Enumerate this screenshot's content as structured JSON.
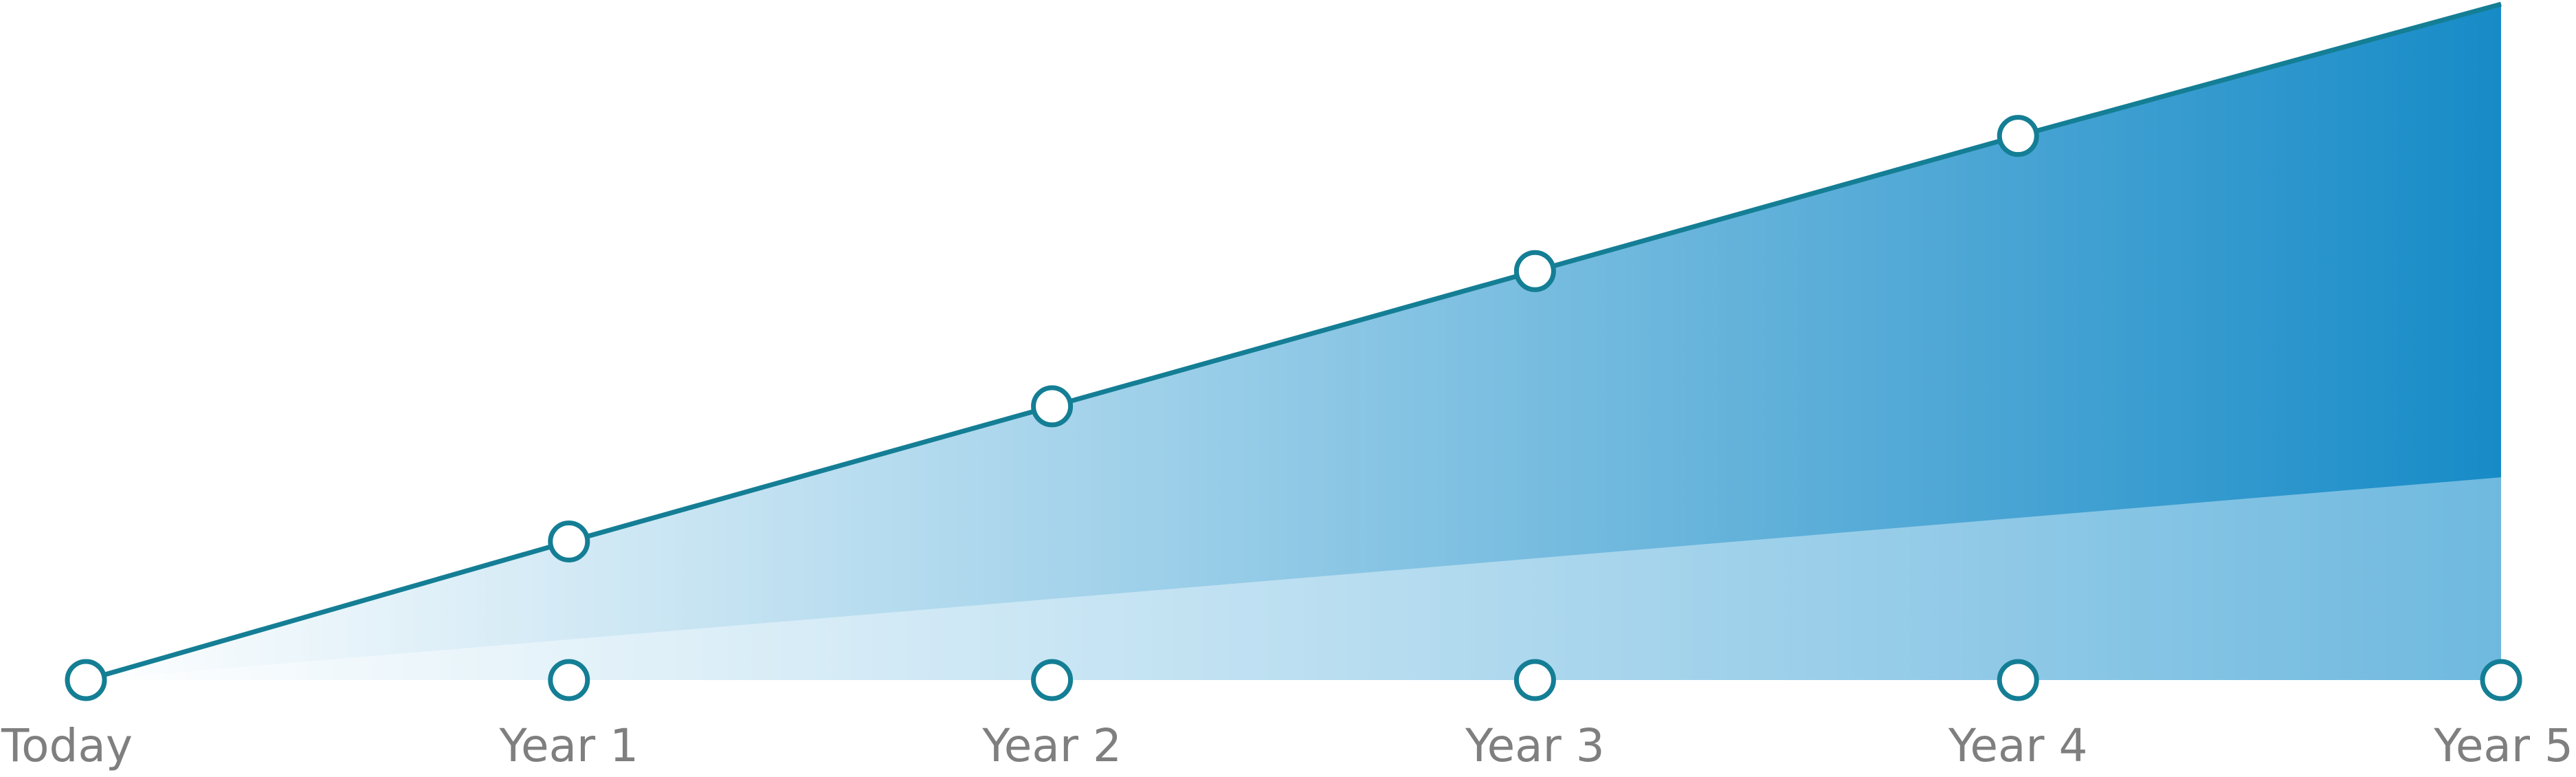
{
  "chart_data": {
    "type": "area",
    "categories": [
      "Today",
      "Year 1",
      "Year 2",
      "Year 3",
      "Year 4",
      "Year 5"
    ],
    "series": [
      {
        "values": [
          0,
          20.5,
          40.5,
          60.5,
          80.5,
          100
        ],
        "style": "line-with-markers-and-gradient-area"
      },
      {
        "values": [
          0,
          6,
          12,
          18,
          24,
          30
        ],
        "style": "gradient-area"
      },
      {
        "values": [
          0,
          0,
          0,
          0,
          0,
          0
        ],
        "style": "baseline-markers"
      }
    ],
    "ylim": [
      0,
      100
    ],
    "grid": false,
    "legend": "none",
    "colors": {
      "line": "#147e95",
      "marker_stroke": "#147e95",
      "marker_fill": "#ffffff",
      "area_dark": "#178bc7",
      "area_light": "#ffffff",
      "tick_label": "#7f7f7f"
    }
  }
}
